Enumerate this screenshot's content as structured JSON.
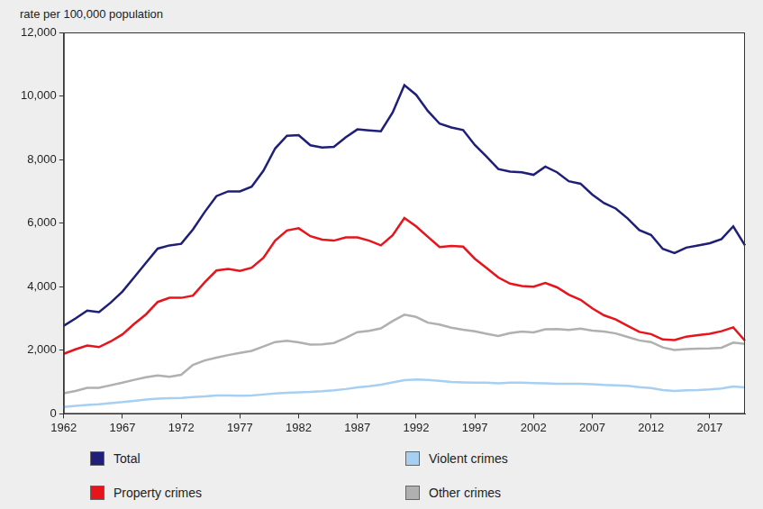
{
  "chart_data": {
    "type": "line",
    "y_label": "rate per 100,000 population",
    "categories": [
      "1962",
      null,
      null,
      null,
      null,
      "1967",
      null,
      null,
      null,
      null,
      "1972",
      null,
      null,
      null,
      null,
      "1977",
      null,
      null,
      null,
      null,
      "1982",
      null,
      null,
      null,
      null,
      "1987",
      null,
      null,
      null,
      null,
      "1992",
      null,
      null,
      null,
      null,
      "1997",
      null,
      null,
      null,
      null,
      "2002",
      null,
      null,
      null,
      null,
      "2007",
      null,
      null,
      null,
      null,
      "2012",
      null,
      null,
      null,
      null,
      "2017",
      null,
      null,
      null
    ],
    "series": [
      {
        "name": "Total",
        "color": "#1f1f7a",
        "values": [
          2770,
          3000,
          3250,
          3200,
          3500,
          3850,
          4300,
          4750,
          5200,
          5300,
          5350,
          5800,
          6350,
          6850,
          7000,
          7000,
          7150,
          7650,
          8350,
          8750,
          8770,
          8450,
          8380,
          8400,
          8700,
          8950,
          8920,
          8890,
          9480,
          10340,
          10040,
          9530,
          9130,
          9010,
          8930,
          8460,
          8090,
          7700,
          7620,
          7600,
          7520,
          7780,
          7600,
          7320,
          7240,
          6900,
          6630,
          6460,
          6150,
          5780,
          5630,
          5190,
          5060,
          5230,
          5300,
          5370,
          5500,
          5900,
          5300
        ]
      },
      {
        "name": "Property crimes",
        "color": "#e8141c",
        "values": [
          1890,
          2030,
          2150,
          2100,
          2280,
          2500,
          2830,
          3130,
          3520,
          3650,
          3650,
          3720,
          4140,
          4510,
          4560,
          4500,
          4600,
          4910,
          5450,
          5770,
          5840,
          5590,
          5480,
          5450,
          5550,
          5550,
          5450,
          5300,
          5620,
          6160,
          5900,
          5570,
          5250,
          5280,
          5260,
          4880,
          4590,
          4290,
          4100,
          4020,
          4000,
          4120,
          3980,
          3750,
          3590,
          3320,
          3100,
          2970,
          2770,
          2580,
          2510,
          2340,
          2320,
          2430,
          2480,
          2520,
          2600,
          2720,
          2300
        ]
      },
      {
        "name": "Violent crimes",
        "color": "#a6cff2",
        "values": [
          220,
          250,
          280,
          300,
          340,
          370,
          410,
          450,
          480,
          490,
          500,
          530,
          550,
          580,
          580,
          570,
          580,
          610,
          640,
          660,
          680,
          690,
          710,
          740,
          780,
          830,
          870,
          920,
          990,
          1060,
          1080,
          1070,
          1040,
          1000,
          990,
          980,
          980,
          960,
          980,
          980,
          970,
          960,
          950,
          950,
          950,
          930,
          910,
          900,
          880,
          840,
          810,
          750,
          720,
          740,
          750,
          770,
          800,
          860,
          830
        ]
      },
      {
        "name": "Other crimes",
        "color": "#b0b0b0",
        "values": [
          650,
          720,
          820,
          820,
          900,
          980,
          1070,
          1150,
          1210,
          1170,
          1230,
          1540,
          1680,
          1770,
          1850,
          1920,
          1980,
          2120,
          2260,
          2300,
          2250,
          2180,
          2190,
          2230,
          2390,
          2570,
          2610,
          2690,
          2920,
          3120,
          3050,
          2870,
          2810,
          2710,
          2650,
          2600,
          2520,
          2450,
          2540,
          2590,
          2560,
          2660,
          2670,
          2640,
          2680,
          2620,
          2590,
          2530,
          2420,
          2310,
          2260,
          2090,
          2010,
          2040,
          2050,
          2060,
          2080,
          2240,
          2200
        ]
      }
    ],
    "ylim": [
      0,
      12000
    ],
    "yticks": [
      0,
      {
        "value": 2000,
        "label": "2,000"
      },
      {
        "value": 4000,
        "label": "4,000"
      },
      {
        "value": 6000,
        "label": "6,000"
      },
      {
        "value": 8000,
        "label": "8,000"
      },
      {
        "value": 10000,
        "label": "10,000"
      },
      {
        "value": 12000,
        "label": "12,000"
      }
    ],
    "grid": false,
    "legend": "bottom"
  }
}
